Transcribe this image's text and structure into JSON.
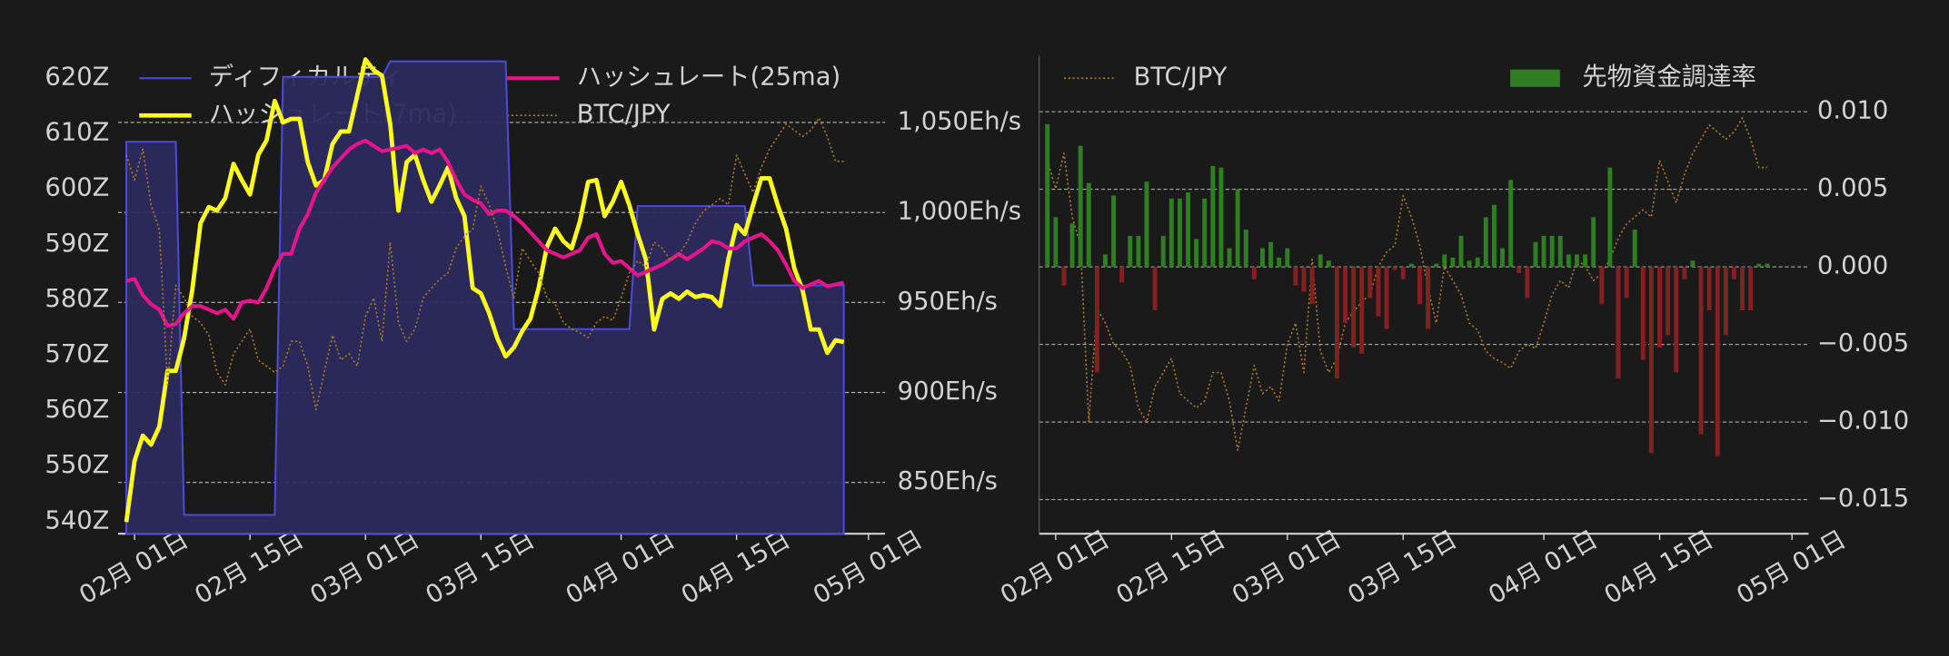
{
  "chart_data": [
    {
      "type": "line",
      "x": [
        "01-31",
        "02-01",
        "02-02",
        "02-03",
        "02-04",
        "02-05",
        "02-06",
        "02-07",
        "02-08",
        "02-09",
        "02-10",
        "02-11",
        "02-12",
        "02-13",
        "02-14",
        "02-15",
        "02-16",
        "02-17",
        "02-18",
        "02-19",
        "02-20",
        "02-21",
        "02-22",
        "02-23",
        "02-24",
        "02-25",
        "02-26",
        "02-27",
        "02-28",
        "03-01",
        "03-02",
        "03-03",
        "03-04",
        "03-05",
        "03-06",
        "03-07",
        "03-08",
        "03-09",
        "03-10",
        "03-11",
        "03-12",
        "03-13",
        "03-14",
        "03-15",
        "03-16",
        "03-17",
        "03-18",
        "03-19",
        "03-20",
        "03-21",
        "03-22",
        "03-23",
        "03-24",
        "03-25",
        "03-26",
        "03-27",
        "03-28",
        "03-29",
        "03-30",
        "03-31",
        "04-01",
        "04-02",
        "04-03",
        "04-04",
        "04-05",
        "04-06",
        "04-07",
        "04-08",
        "04-09",
        "04-10",
        "04-11",
        "04-12",
        "04-13",
        "04-14",
        "04-15",
        "04-16",
        "04-17",
        "04-18",
        "04-19",
        "04-20",
        "04-21",
        "04-22",
        "04-23",
        "04-24",
        "04-25",
        "04-26",
        "04-27",
        "04-28"
      ],
      "xlim": [
        "01-30",
        "05-03"
      ],
      "xticks": [
        {
          "value": "02-01",
          "label": "02月 01日"
        },
        {
          "value": "02-15",
          "label": "02月 15日"
        },
        {
          "value": "03-01",
          "label": "03月 01日"
        },
        {
          "value": "03-15",
          "label": "03月 15日"
        },
        {
          "value": "04-01",
          "label": "04月 01日"
        },
        {
          "value": "04-15",
          "label": "04月 15日"
        },
        {
          "value": "05-01",
          "label": "05月 01日"
        }
      ],
      "ylim": [
        537.8,
        624
      ],
      "yticks": [
        {
          "value": 540,
          "label": "540Z"
        },
        {
          "value": 550,
          "label": "550Z"
        },
        {
          "value": 560,
          "label": "560Z"
        },
        {
          "value": 570,
          "label": "570Z"
        },
        {
          "value": 580,
          "label": "580Z"
        },
        {
          "value": 590,
          "label": "590Z"
        },
        {
          "value": 600,
          "label": "600Z"
        },
        {
          "value": 610,
          "label": "610Z"
        },
        {
          "value": 620,
          "label": "620Z"
        }
      ],
      "y2lim": [
        821.5,
        1087
      ],
      "y2ticks": [
        {
          "value": 850,
          "label": "850Eh/s"
        },
        {
          "value": 900,
          "label": "900Eh/s"
        },
        {
          "value": 950,
          "label": "950Eh/s"
        },
        {
          "value": 1000,
          "label": "1,000Eh/s"
        },
        {
          "value": 1050,
          "label": "1,050Eh/s"
        }
      ],
      "y3lim": [
        9805000,
        16350000
      ],
      "grid": "y2",
      "legend": "upper left",
      "series": [
        {
          "name": "ディフィカルティ",
          "type": "area",
          "axis": "y",
          "color": "#4b4bd6",
          "fill": "#2b2a5e",
          "values": [
            608.5,
            608.5,
            608.5,
            608.5,
            608.5,
            608.5,
            608.5,
            541.2,
            541.2,
            541.2,
            541.2,
            541.2,
            541.2,
            541.2,
            541.2,
            541.2,
            541.2,
            541.2,
            541.2,
            620.2,
            620.2,
            620.2,
            620.2,
            620.2,
            620.2,
            620.2,
            620.2,
            620.2,
            620.2,
            620.2,
            620.2,
            620.2,
            623,
            623,
            623,
            623,
            623,
            623,
            623,
            623,
            623,
            623,
            623,
            623,
            623,
            623,
            623,
            574.7,
            574.7,
            574.7,
            574.7,
            574.7,
            574.7,
            574.7,
            574.7,
            574.7,
            574.7,
            574.7,
            574.7,
            574.7,
            574.7,
            574.7,
            596.9,
            596.9,
            596.9,
            596.9,
            596.9,
            596.9,
            596.9,
            596.9,
            596.9,
            596.9,
            596.9,
            596.9,
            596.9,
            596.9,
            582.6,
            582.6,
            582.6,
            582.6,
            582.6,
            582.6,
            582.6,
            582.6,
            582.6,
            582.6,
            582.6,
            582.6
          ]
        },
        {
          "name": "ハッシュレート(7ma)",
          "type": "line",
          "axis": "y2",
          "color": "#ffff1a",
          "width": 3.5,
          "values": [
            828,
            862,
            876,
            871,
            881,
            912,
            912,
            930,
            957,
            994,
            1003,
            1001,
            1008,
            1027,
            1018,
            1010,
            1032,
            1040,
            1062,
            1050,
            1052,
            1052,
            1028,
            1015,
            1018,
            1038,
            1045,
            1045,
            1065,
            1085,
            1079,
            1076,
            1049,
            1001,
            1028,
            1032,
            1018,
            1006,
            1015,
            1025,
            1008,
            998,
            958,
            955,
            944,
            930,
            920,
            925,
            934,
            941,
            958,
            981,
            991,
            984,
            980,
            995,
            1017,
            1018,
            998,
            1006,
            1017,
            1004,
            988,
            974,
            935,
            952,
            955,
            952,
            956,
            953,
            954,
            953,
            948,
            974,
            993,
            988,
            1004,
            1019,
            1019,
            1004,
            991,
            969,
            957,
            935,
            935,
            922,
            929,
            928
          ]
        },
        {
          "name": "ハッシュレート(25ma)",
          "type": "line",
          "axis": "y2",
          "color": "#e8148c",
          "width": 3,
          "values": [
            962,
            963,
            954,
            949,
            946,
            937,
            938,
            944,
            948,
            948,
            946,
            944,
            946,
            941,
            950,
            951,
            950,
            958,
            969,
            977,
            977,
            991,
            999,
            1011,
            1018,
            1025,
            1030,
            1035,
            1038,
            1040,
            1037,
            1034,
            1035,
            1036,
            1037,
            1033,
            1035,
            1033,
            1035,
            1028,
            1018,
            1010,
            1007,
            1005,
            999,
            1001,
            1001,
            998,
            994,
            989,
            984,
            979,
            977,
            975,
            977,
            979,
            986,
            988,
            977,
            972,
            973,
            969,
            965,
            967,
            969,
            971,
            974,
            977,
            974,
            977,
            980,
            984,
            983,
            980,
            980,
            984,
            986,
            988,
            984,
            979,
            971,
            962,
            958,
            960,
            962,
            959,
            960,
            961
          ]
        },
        {
          "name": "BTC/JPY",
          "type": "line",
          "axis": "y3",
          "color": "#b07a20",
          "width": 1.2,
          "linestyle": "dotted",
          "values": [
            14990000,
            14650000,
            15075000,
            14310000,
            13970000,
            11845000,
            13205000,
            13035000,
            12780000,
            12695000,
            12525000,
            12015000,
            11845000,
            12270000,
            12440000,
            12610000,
            12185000,
            12100000,
            12015000,
            12100000,
            12440000,
            12440000,
            12100000,
            11505000,
            12015000,
            12525000,
            12185000,
            12270000,
            12100000,
            12780000,
            13035000,
            12440000,
            13800000,
            12695000,
            12440000,
            12610000,
            13035000,
            13171000,
            13290000,
            13375000,
            13715000,
            13885000,
            13970000,
            14565000,
            14310000,
            13970000,
            13460000,
            13035000,
            13715000,
            13545000,
            13375000,
            13035000,
            12950000,
            12695000,
            12610000,
            12559000,
            12491000,
            12695000,
            12780000,
            12729000,
            13035000,
            13375000,
            13545000,
            13460000,
            13800000,
            13715000,
            13545000,
            13630000,
            13800000,
            14055000,
            14225000,
            14310000,
            14395000,
            14310000,
            14990000,
            14735000,
            14480000,
            14820000,
            15075000,
            15245000,
            15415000,
            15330000,
            15245000,
            15330000,
            15500000,
            15245000,
            14905000,
            14905000
          ]
        }
      ]
    },
    {
      "type": "bar",
      "x": [
        "01-31",
        "02-01",
        "02-02",
        "02-03",
        "02-04",
        "02-05",
        "02-06",
        "02-07",
        "02-08",
        "02-09",
        "02-10",
        "02-11",
        "02-12",
        "02-13",
        "02-14",
        "02-15",
        "02-16",
        "02-17",
        "02-18",
        "02-19",
        "02-20",
        "02-21",
        "02-22",
        "02-23",
        "02-24",
        "02-25",
        "02-26",
        "02-27",
        "02-28",
        "03-01",
        "03-02",
        "03-03",
        "03-04",
        "03-05",
        "03-06",
        "03-07",
        "03-08",
        "03-09",
        "03-10",
        "03-11",
        "03-12",
        "03-13",
        "03-14",
        "03-15",
        "03-16",
        "03-17",
        "03-18",
        "03-19",
        "03-20",
        "03-21",
        "03-22",
        "03-23",
        "03-24",
        "03-25",
        "03-26",
        "03-27",
        "03-28",
        "03-29",
        "03-30",
        "03-31",
        "04-01",
        "04-02",
        "04-03",
        "04-04",
        "04-05",
        "04-06",
        "04-07",
        "04-08",
        "04-09",
        "04-10",
        "04-11",
        "04-12",
        "04-13",
        "04-14",
        "04-15",
        "04-16",
        "04-17",
        "04-18",
        "04-19",
        "04-20",
        "04-21",
        "04-22",
        "04-23",
        "04-24",
        "04-25",
        "04-26",
        "04-27",
        "04-28"
      ],
      "xlim": [
        "01-30",
        "05-03"
      ],
      "xticks": [
        {
          "value": "02-01",
          "label": "02月 01日"
        },
        {
          "value": "02-15",
          "label": "02月 15日"
        },
        {
          "value": "03-01",
          "label": "03月 01日"
        },
        {
          "value": "03-15",
          "label": "03月 15日"
        },
        {
          "value": "04-01",
          "label": "04月 01日"
        },
        {
          "value": "04-15",
          "label": "04月 15日"
        },
        {
          "value": "05-01",
          "label": "05月 01日"
        }
      ],
      "ylim": [
        -0.0172,
        0.0136
      ],
      "yticks": [
        {
          "value": -0.015,
          "label": "−0.015"
        },
        {
          "value": -0.01,
          "label": "−0.010"
        },
        {
          "value": -0.005,
          "label": "−0.005"
        },
        {
          "value": 0,
          "label": "0.000"
        },
        {
          "value": 0.005,
          "label": "0.005"
        },
        {
          "value": 0.01,
          "label": "0.010"
        }
      ],
      "y3lim": [
        10502000,
        16246000
      ],
      "grid": "y",
      "legend": "upper left",
      "series": [
        {
          "name": "BTC/JPY",
          "type": "line",
          "axis": "y3",
          "color": "#b07a20",
          "width": 1.2,
          "linestyle": "dotted",
          "values": [
            14990000,
            14650000,
            15075000,
            14310000,
            13970000,
            11845000,
            13205000,
            13035000,
            12780000,
            12695000,
            12525000,
            12015000,
            11845000,
            12270000,
            12440000,
            12610000,
            12185000,
            12100000,
            12015000,
            12100000,
            12440000,
            12440000,
            12100000,
            11505000,
            12015000,
            12525000,
            12185000,
            12270000,
            12100000,
            12780000,
            13035000,
            12440000,
            13800000,
            12695000,
            12440000,
            12610000,
            13035000,
            13171000,
            13290000,
            13375000,
            13715000,
            13885000,
            13970000,
            14565000,
            14310000,
            13970000,
            13460000,
            13035000,
            13715000,
            13545000,
            13375000,
            13035000,
            12950000,
            12695000,
            12610000,
            12559000,
            12491000,
            12695000,
            12780000,
            12729000,
            13035000,
            13375000,
            13545000,
            13460000,
            13800000,
            13715000,
            13545000,
            13630000,
            13800000,
            14055000,
            14225000,
            14310000,
            14395000,
            14310000,
            14990000,
            14735000,
            14480000,
            14820000,
            15075000,
            15245000,
            15415000,
            15330000,
            15245000,
            15330000,
            15500000,
            15245000,
            14905000,
            14905000
          ]
        },
        {
          "name": "先物資金調達率",
          "type": "bar",
          "axis": "y",
          "color": "#2f7f22",
          "neg_color": "#852020",
          "values": [
            0.0092,
            0.0032,
            -0.0012,
            0.0028,
            0.0078,
            0.0054,
            -0.0068,
            0.0008,
            0.0046,
            -0.001,
            0.002,
            0.002,
            0.0055,
            -0.0028,
            0.002,
            0.0044,
            0.0044,
            0.0048,
            0.0018,
            0.0044,
            0.0065,
            0.0064,
            0.0012,
            0.005,
            0.0024,
            -0.0008,
            0.0012,
            0.0016,
            0.0006,
            0.0012,
            -0.0012,
            -0.0016,
            -0.0024,
            0.0008,
            0.0004,
            -0.0072,
            -0.0036,
            -0.0052,
            -0.0056,
            -0.002,
            -0.0032,
            -0.004,
            -0.0002,
            -0.0008,
            0.0002,
            -0.0024,
            -0.004,
            0.0002,
            0.0008,
            0.0006,
            0.002,
            0.0004,
            0.0006,
            0.0032,
            0.004,
            0.0012,
            0.0056,
            -0.0004,
            -0.002,
            0.0016,
            0.002,
            0.002,
            0.002,
            0.0008,
            0.0008,
            0.0008,
            0.0032,
            -0.0024,
            0.0064,
            -0.0072,
            -0.002,
            0.0024,
            -0.006,
            -0.012,
            -0.0052,
            -0.0044,
            -0.0068,
            -0.0008,
            0.0004,
            -0.0108,
            -0.0028,
            -0.0122,
            -0.0044,
            -0.0008,
            -0.0028,
            -0.0028,
            0.0002,
            0.0002
          ]
        }
      ]
    }
  ]
}
